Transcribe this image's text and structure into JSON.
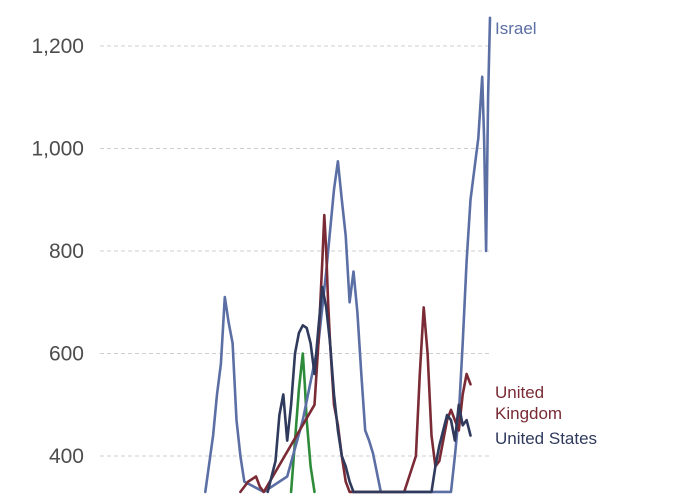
{
  "chart_data": {
    "type": "line",
    "title": "",
    "xlabel": "",
    "ylabel": "",
    "ylim": [
      330,
      1260
    ],
    "y_ticks": [
      400,
      600,
      800,
      1000,
      1200
    ],
    "y_tick_labels": [
      "400",
      "600",
      "800",
      "1,000",
      "1,200"
    ],
    "grid": "horizontal dashed",
    "x_index_range": [
      0,
      100
    ],
    "series": [
      {
        "name": "Israel",
        "color": "#5b6fa5",
        "points": [
          [
            27,
            330
          ],
          [
            29,
            440
          ],
          [
            30,
            520
          ],
          [
            31,
            580
          ],
          [
            32,
            710
          ],
          [
            33,
            660
          ],
          [
            34,
            620
          ],
          [
            35,
            470
          ],
          [
            36,
            400
          ],
          [
            37,
            350
          ],
          [
            42,
            330
          ],
          [
            48,
            360
          ],
          [
            52,
            470
          ],
          [
            56,
            620
          ],
          [
            58,
            760
          ],
          [
            60,
            920
          ],
          [
            61,
            975
          ],
          [
            62,
            900
          ],
          [
            63,
            830
          ],
          [
            64,
            700
          ],
          [
            65,
            760
          ],
          [
            66,
            680
          ],
          [
            67,
            560
          ],
          [
            68,
            450
          ],
          [
            69,
            430
          ],
          [
            70,
            405
          ],
          [
            72,
            330
          ],
          [
            90,
            330
          ],
          [
            91,
            400
          ],
          [
            92,
            480
          ],
          [
            93,
            620
          ],
          [
            94,
            780
          ],
          [
            95,
            900
          ],
          [
            96,
            960
          ],
          [
            97,
            1020
          ],
          [
            98,
            1140
          ],
          [
            98.5,
            1020
          ],
          [
            99,
            800
          ],
          [
            99.5,
            1100
          ],
          [
            100,
            1255
          ]
        ]
      },
      {
        "name": "United Kingdom",
        "color": "#7a2b35",
        "points": [
          [
            36,
            330
          ],
          [
            38,
            350
          ],
          [
            40,
            360
          ],
          [
            41,
            340
          ],
          [
            42,
            330
          ],
          [
            55,
            500
          ],
          [
            56,
            620
          ],
          [
            57,
            780
          ],
          [
            57.5,
            870
          ],
          [
            58,
            800
          ],
          [
            58.5,
            700
          ],
          [
            59,
            620
          ],
          [
            60,
            500
          ],
          [
            61,
            460
          ],
          [
            62,
            400
          ],
          [
            63,
            350
          ],
          [
            64,
            330
          ],
          [
            78,
            330
          ],
          [
            81,
            400
          ],
          [
            82,
            560
          ],
          [
            83,
            690
          ],
          [
            84,
            600
          ],
          [
            85,
            440
          ],
          [
            86,
            380
          ],
          [
            87,
            390
          ],
          [
            88,
            430
          ],
          [
            89,
            470
          ],
          [
            90,
            490
          ],
          [
            91,
            470
          ],
          [
            92,
            450
          ],
          [
            93,
            520
          ],
          [
            94,
            560
          ],
          [
            95,
            540
          ]
        ]
      },
      {
        "name": "United States",
        "color": "#2f3a5c",
        "points": [
          [
            43,
            330
          ],
          [
            45,
            390
          ],
          [
            46,
            480
          ],
          [
            47,
            520
          ],
          [
            48,
            430
          ],
          [
            49,
            500
          ],
          [
            50,
            600
          ],
          [
            51,
            640
          ],
          [
            52,
            655
          ],
          [
            53,
            650
          ],
          [
            54,
            620
          ],
          [
            55,
            560
          ],
          [
            56,
            650
          ],
          [
            57,
            730
          ],
          [
            58,
            690
          ],
          [
            59,
            620
          ],
          [
            60,
            520
          ],
          [
            61,
            450
          ],
          [
            62,
            400
          ],
          [
            63,
            380
          ],
          [
            64,
            350
          ],
          [
            65,
            330
          ],
          [
            85,
            330
          ],
          [
            86,
            380
          ],
          [
            87,
            420
          ],
          [
            88,
            450
          ],
          [
            89,
            480
          ],
          [
            90,
            470
          ],
          [
            91,
            430
          ],
          [
            92,
            500
          ],
          [
            93,
            460
          ],
          [
            94,
            470
          ],
          [
            95,
            440
          ]
        ]
      },
      {
        "name": "",
        "color": "#2e8b3a",
        "points": [
          [
            49,
            330
          ],
          [
            50,
            430
          ],
          [
            51,
            530
          ],
          [
            52,
            600
          ],
          [
            52.5,
            540
          ],
          [
            53,
            470
          ],
          [
            54,
            380
          ],
          [
            55,
            330
          ]
        ]
      }
    ]
  }
}
